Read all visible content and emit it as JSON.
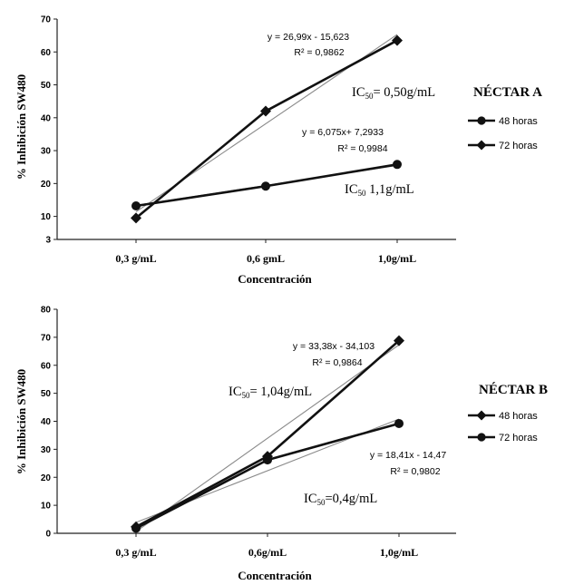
{
  "chart_data": [
    {
      "type": "line",
      "title": "NÉCTAR A",
      "xlabel": "Concentración",
      "ylabel": "% Inhibición SW480",
      "ylim": [
        3,
        70
      ],
      "yticks": [
        "3",
        "10",
        "20",
        "30",
        "40",
        "50",
        "60",
        "70"
      ],
      "yticks_values": [
        3,
        10,
        20,
        30,
        40,
        50,
        60,
        70
      ],
      "categories": [
        "0,3 g/mL",
        "0,6 gmL",
        "1,0g/mL"
      ],
      "series": [
        {
          "name": "48 horas",
          "marker": "circle",
          "values": [
            13.2,
            19.2,
            25.8
          ]
        },
        {
          "name": "72 horas",
          "marker": "diamond",
          "values": [
            9.5,
            42.0,
            63.5
          ]
        }
      ],
      "trendlines": [
        {
          "series": "72 horas",
          "equation": "y = 26,99x - 15,623",
          "r2": "R² = 0,9862",
          "values": [
            11.4,
            38.4,
            65.3
          ]
        },
        {
          "series": "48 horas",
          "equation": "y = 6,075x+ 7,2933",
          "r2": "R² = 0,9984",
          "values": [
            13.4,
            19.4,
            25.5
          ]
        }
      ],
      "annotations": {
        "ic_top": "IC50= 0,50g/mL",
        "ic_bottom": "IC50 1,1g/mL"
      },
      "legend_position": "right",
      "grid": false
    },
    {
      "type": "line",
      "title": "NÉCTAR B",
      "xlabel": "Concentración",
      "ylabel": "% Inhibición SW480",
      "ylim": [
        0,
        80
      ],
      "yticks": [
        "0",
        "10",
        "20",
        "30",
        "40",
        "50",
        "60",
        "70",
        "80"
      ],
      "yticks_values": [
        0,
        10,
        20,
        30,
        40,
        50,
        60,
        70,
        80
      ],
      "categories": [
        "0,3 g/mL",
        "0,6g/mL",
        "1,0g/mL"
      ],
      "series": [
        {
          "name": "48 horas",
          "marker": "diamond",
          "values": [
            2.3,
            27.5,
            68.8
          ]
        },
        {
          "name": "72 horas",
          "marker": "circle",
          "values": [
            1.8,
            26.2,
            39.2
          ]
        }
      ],
      "trendlines": [
        {
          "series": "48 horas",
          "equation": "y = 33,38x - 34,103",
          "r2": "R² = 0,9864",
          "values": [
            0.6,
            33.9,
            67.3
          ]
        },
        {
          "series": "72 horas",
          "equation": "y = 18,41x - 14,47",
          "r2": "R² = 0,9802",
          "values": [
            3.9,
            22.3,
            40.8
          ]
        }
      ],
      "annotations": {
        "ic_top": "IC50= 1,04g/mL",
        "ic_bottom": "IC50=0,4g/mL"
      },
      "legend_position": "right",
      "grid": false
    }
  ],
  "colors": {
    "series": "#111111",
    "trendline": "#8a8a8a",
    "axis": "#222222"
  }
}
